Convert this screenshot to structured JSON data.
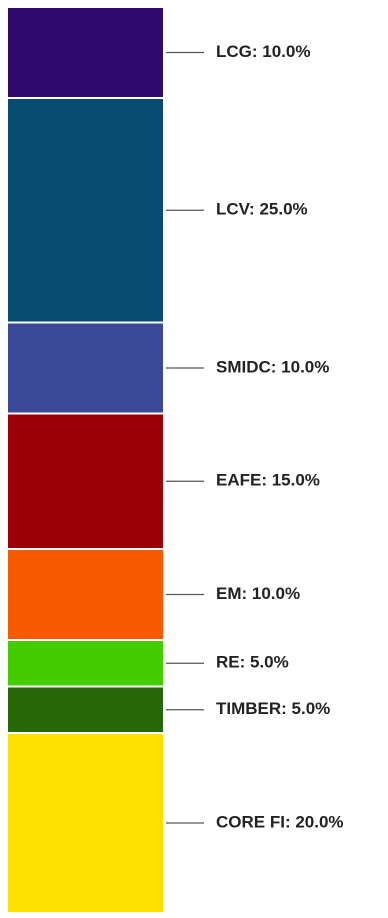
{
  "chart_data": {
    "type": "bar",
    "stacked": true,
    "orientation": "vertical",
    "categories": [
      "LCG",
      "LCV",
      "SMIDC",
      "EAFE",
      "EM",
      "RE",
      "TIMBER",
      "CORE FI"
    ],
    "values": [
      10.0,
      25.0,
      10.0,
      15.0,
      10.0,
      5.0,
      5.0,
      20.0
    ],
    "unit": "%",
    "labels": [
      "LCG: 10.0%",
      "LCV: 25.0%",
      "SMIDC: 10.0%",
      "EAFE: 15.0%",
      "EM: 10.0%",
      "RE: 5.0%",
      "TIMBER: 5.0%",
      "CORE FI: 20.0%"
    ],
    "colors": [
      "#2d0a6b",
      "#074b6e",
      "#3a4a98",
      "#9b0008",
      "#f65b00",
      "#44cc00",
      "#266707",
      "#fde000"
    ],
    "total": 100,
    "title": "",
    "xlabel": "",
    "ylabel": "",
    "legend": "none",
    "grid": false
  }
}
